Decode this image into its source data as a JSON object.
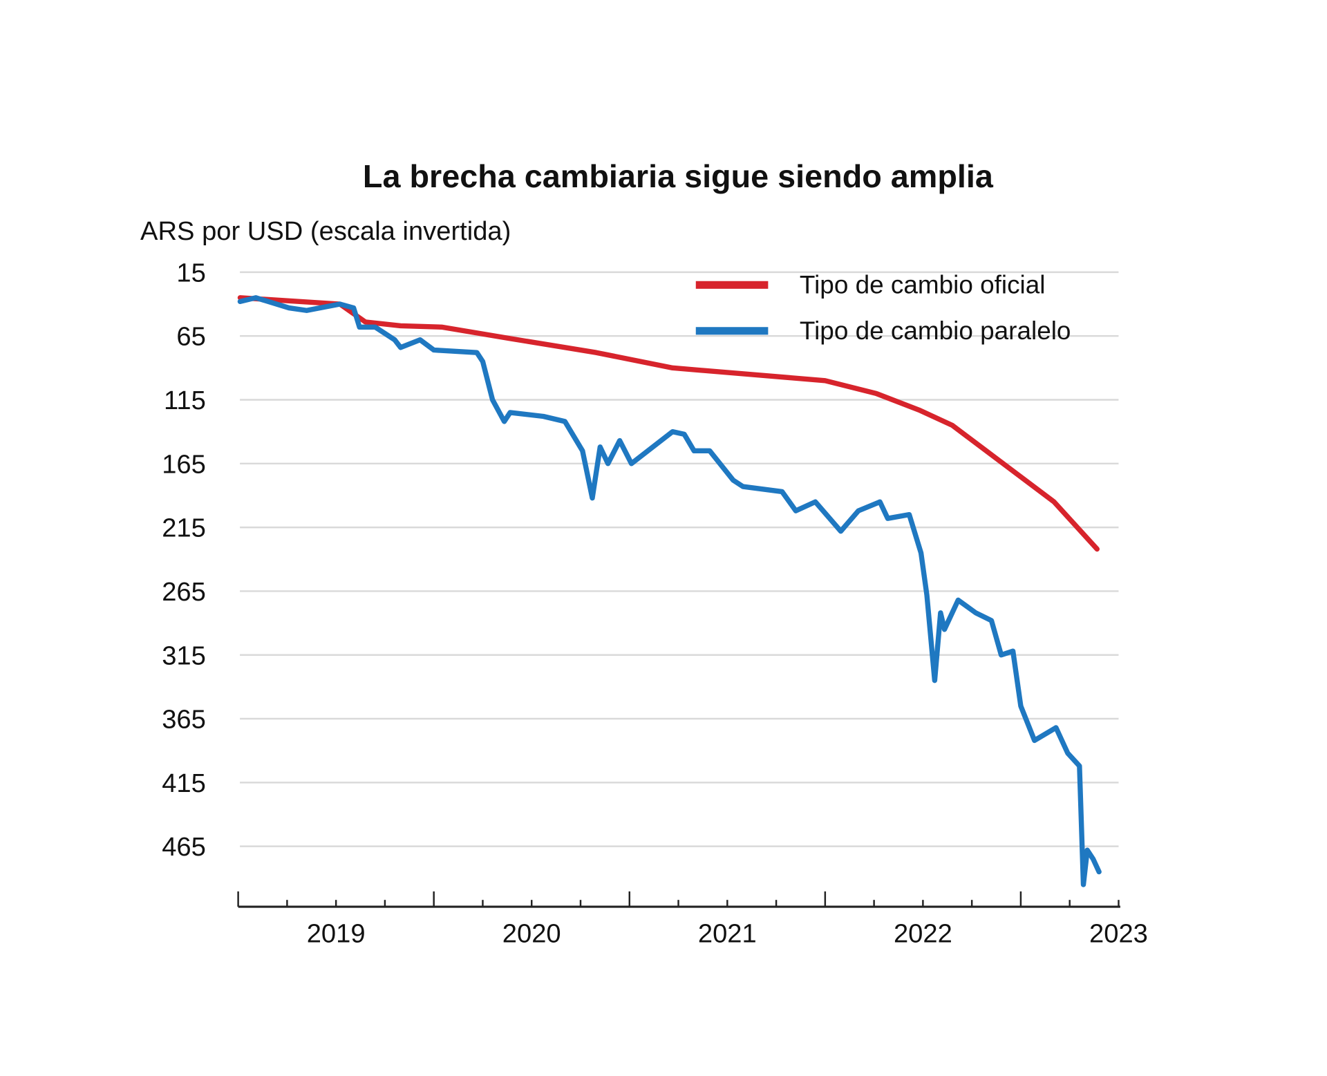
{
  "chart_data": {
    "type": "line",
    "title": "La brecha cambiaria sigue siendo amplia",
    "ylabel": "ARS por USD (escala invertida)",
    "xlabel": "",
    "y_inverted": true,
    "ylim": [
      15,
      515
    ],
    "yticks": [
      15,
      65,
      115,
      165,
      215,
      265,
      315,
      365,
      415,
      465
    ],
    "xlim": [
      2019.0,
      2023.5
    ],
    "xtick_labels": [
      {
        "label": "2019",
        "x": 2019.5
      },
      {
        "label": "2020",
        "x": 2020.5
      },
      {
        "label": "2021",
        "x": 2021.5
      },
      {
        "label": "2022",
        "x": 2022.5
      },
      {
        "label": "2023",
        "x": 2023.5
      }
    ],
    "grid": true,
    "legend_position": "top-right",
    "series": [
      {
        "name": "Tipo de cambio oficial",
        "color": "#d7242c",
        "points": [
          [
            2019.01,
            35
          ],
          [
            2019.52,
            40
          ],
          [
            2019.65,
            54
          ],
          [
            2019.83,
            57
          ],
          [
            2020.04,
            58
          ],
          [
            2020.39,
            67
          ],
          [
            2020.83,
            78
          ],
          [
            2021.22,
            90
          ],
          [
            2021.61,
            95
          ],
          [
            2022.0,
            100
          ],
          [
            2022.26,
            110
          ],
          [
            2022.48,
            123
          ],
          [
            2022.65,
            135
          ],
          [
            2022.91,
            165
          ],
          [
            2023.17,
            195
          ],
          [
            2023.39,
            232
          ]
        ]
      },
      {
        "name": "Tipo de cambio paralelo",
        "color": "#1f78c1",
        "points": [
          [
            2019.01,
            38
          ],
          [
            2019.09,
            35
          ],
          [
            2019.26,
            43
          ],
          [
            2019.35,
            45
          ],
          [
            2019.52,
            40
          ],
          [
            2019.59,
            43
          ],
          [
            2019.62,
            58
          ],
          [
            2019.7,
            58
          ],
          [
            2019.8,
            68
          ],
          [
            2019.83,
            74
          ],
          [
            2019.93,
            68
          ],
          [
            2020.0,
            76
          ],
          [
            2020.22,
            78
          ],
          [
            2020.25,
            85
          ],
          [
            2020.3,
            115
          ],
          [
            2020.36,
            132
          ],
          [
            2020.39,
            125
          ],
          [
            2020.56,
            128
          ],
          [
            2020.67,
            132
          ],
          [
            2020.76,
            155
          ],
          [
            2020.81,
            192
          ],
          [
            2020.85,
            152
          ],
          [
            2020.89,
            165
          ],
          [
            2020.95,
            147
          ],
          [
            2021.01,
            165
          ],
          [
            2021.22,
            140
          ],
          [
            2021.28,
            142
          ],
          [
            2021.33,
            155
          ],
          [
            2021.41,
            155
          ],
          [
            2021.53,
            178
          ],
          [
            2021.58,
            183
          ],
          [
            2021.78,
            187
          ],
          [
            2021.85,
            202
          ],
          [
            2021.95,
            195
          ],
          [
            2022.08,
            218
          ],
          [
            2022.17,
            202
          ],
          [
            2022.28,
            195
          ],
          [
            2022.32,
            208
          ],
          [
            2022.43,
            205
          ],
          [
            2022.49,
            235
          ],
          [
            2022.52,
            268
          ],
          [
            2022.56,
            335
          ],
          [
            2022.59,
            282
          ],
          [
            2022.61,
            295
          ],
          [
            2022.68,
            272
          ],
          [
            2022.77,
            282
          ],
          [
            2022.85,
            288
          ],
          [
            2022.9,
            315
          ],
          [
            2022.96,
            312
          ],
          [
            2023.0,
            355
          ],
          [
            2023.07,
            382
          ],
          [
            2023.18,
            372
          ],
          [
            2023.24,
            392
          ],
          [
            2023.3,
            402
          ],
          [
            2023.32,
            495
          ],
          [
            2023.34,
            468
          ],
          [
            2023.37,
            475
          ],
          [
            2023.4,
            485
          ]
        ]
      }
    ]
  }
}
